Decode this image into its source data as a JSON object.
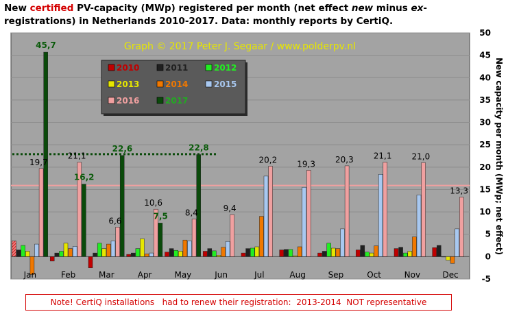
{
  "title": {
    "part1": "New ",
    "highlight": "certified",
    "part2": " PV-capacity (MWp) registered per month (net effect ",
    "emph": "new",
    "part3": " minus ",
    "emph2": "ex",
    "part4": "-registrations) in Netherlands 2010-2017. Data: monthly reports by CertiQ."
  },
  "note": "Note! CertiQ installations   had to renew their registration:  2013-2014  NOT representative",
  "chart_data": {
    "type": "bar",
    "watermark": "Graph © 2017 Peter J. Segaar / www.polderpv.nl",
    "ylabel": "New capacity per month (MWp; net effect)",
    "ylim": [
      -5,
      50
    ],
    "yticks": [
      -5,
      0,
      5,
      10,
      15,
      20,
      25,
      30,
      35,
      40,
      45,
      50
    ],
    "grid": true,
    "legend_position": "top-left",
    "categories": [
      "Jan",
      "Feb",
      "Mar",
      "Apr",
      "May",
      "Jun",
      "Jul",
      "Aug",
      "Sep",
      "Oct",
      "Nov",
      "Dec"
    ],
    "series": [
      {
        "name": "2010",
        "color": "#c00000",
        "values": [
          3.5,
          -1.0,
          -2.5,
          0.5,
          1.0,
          1.2,
          0.8,
          1.5,
          0.8,
          1.5,
          1.8,
          2.0
        ]
      },
      {
        "name": "2011",
        "color": "#202020",
        "values": [
          1.5,
          0.8,
          0.8,
          0.8,
          1.8,
          1.8,
          1.8,
          1.6,
          1.2,
          2.5,
          2.1,
          2.5
        ]
      },
      {
        "name": "2012",
        "color": "#22ee22",
        "values": [
          2.5,
          1.2,
          3.0,
          1.8,
          1.4,
          1.3,
          1.9,
          1.6,
          3.0,
          1.0,
          0.8,
          0.0
        ]
      },
      {
        "name": "2013",
        "color": "#e6e600",
        "values": [
          1.2,
          3.0,
          1.8,
          4.0,
          1.2,
          0.3,
          2.2,
          0.2,
          1.9,
          0.8,
          1.2,
          -0.8
        ]
      },
      {
        "name": "2014",
        "color": "#f07800",
        "values": [
          -4.0,
          1.8,
          2.8,
          0.6,
          3.7,
          2.1,
          9.0,
          2.2,
          1.8,
          2.4,
          4.4,
          -1.5
        ]
      },
      {
        "name": "2015",
        "color": "#a8c8f0",
        "values": [
          2.8,
          2.3,
          3.5,
          0.8,
          3.5,
          3.4,
          18.0,
          15.5,
          6.2,
          18.4,
          13.8,
          6.2
        ]
      },
      {
        "name": "2016",
        "color": "#f0a0a0",
        "values": [
          19.7,
          21.1,
          6.6,
          10.6,
          8.4,
          9.4,
          20.2,
          19.3,
          20.3,
          21.1,
          21.0,
          13.3
        ]
      },
      {
        "name": "2017",
        "color": "#0a4a0a",
        "values": [
          45.7,
          16.2,
          22.6,
          7.5,
          22.8,
          null,
          null,
          null,
          null,
          null,
          null,
          null
        ]
      }
    ],
    "data_labels_2016": [
      "19,7",
      "21,1",
      "6,6",
      "10,6",
      "8,4",
      "9,4",
      "20,2",
      "19,3",
      "20,3",
      "21,1",
      "21,0",
      "13,3"
    ],
    "data_labels_2017": [
      "45,7",
      "16,2",
      "22,6",
      "7,5",
      "22,8"
    ],
    "average_line_2017": 22.9,
    "average_line_2016": 15.9
  }
}
